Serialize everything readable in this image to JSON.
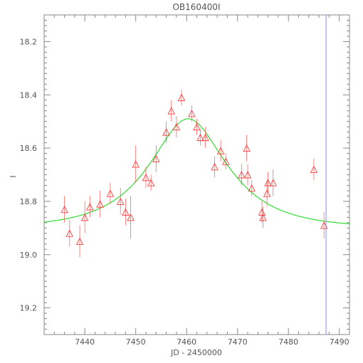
{
  "chart_data": {
    "type": "scatter",
    "title": "OB160400I",
    "xlabel": "JD - 2450000",
    "ylabel": "I",
    "xlim": [
      7432,
      7492
    ],
    "ylim": [
      19.3,
      18.1
    ],
    "y_inverted": true,
    "xticks": [
      7440,
      7450,
      7460,
      7470,
      7480,
      7490
    ],
    "yticks": [
      18.2,
      18.4,
      18.6,
      18.8,
      19.0,
      19.2
    ],
    "yticklabels": [
      "18.2",
      "18.4",
      "18.6",
      "18.8",
      "19.0",
      "19.2"
    ],
    "grid": false,
    "colors": {
      "points": "#ff4040",
      "model": "#33dd33",
      "vline": "#8888ff",
      "axis": "#888888"
    },
    "series": [
      {
        "marker": "open-triangle",
        "points": [
          {
            "x": 7436.0,
            "y": 18.83,
            "err": 0.05
          },
          {
            "x": 7437.0,
            "y": 18.92,
            "err": 0.05
          },
          {
            "x": 7439.0,
            "y": 18.95,
            "err": 0.06
          },
          {
            "x": 7440.0,
            "y": 18.86,
            "err": 0.06
          },
          {
            "x": 7441.0,
            "y": 18.82,
            "err": 0.04
          },
          {
            "x": 7443.0,
            "y": 18.81,
            "err": 0.05
          },
          {
            "x": 7445.0,
            "y": 18.77,
            "err": 0.04
          },
          {
            "x": 7447.0,
            "y": 18.8,
            "err": 0.05
          },
          {
            "x": 7448.0,
            "y": 18.84,
            "err": 0.05
          },
          {
            "x": 7449.0,
            "y": 18.86,
            "err": 0.08
          },
          {
            "x": 7450.0,
            "y": 18.66,
            "err": 0.07
          },
          {
            "x": 7452.0,
            "y": 18.71,
            "err": 0.04
          },
          {
            "x": 7453.0,
            "y": 18.73,
            "err": 0.03
          },
          {
            "x": 7454.0,
            "y": 18.64,
            "err": 0.05
          },
          {
            "x": 7456.0,
            "y": 18.54,
            "err": 0.04
          },
          {
            "x": 7457.0,
            "y": 18.46,
            "err": 0.04
          },
          {
            "x": 7458.0,
            "y": 18.52,
            "err": 0.04
          },
          {
            "x": 7459.0,
            "y": 18.41,
            "err": 0.03
          },
          {
            "x": 7461.0,
            "y": 18.47,
            "err": 0.03
          },
          {
            "x": 7462.0,
            "y": 18.52,
            "err": 0.03
          },
          {
            "x": 7462.7,
            "y": 18.56,
            "err": 0.03
          },
          {
            "x": 7463.7,
            "y": 18.56,
            "err": 0.04
          },
          {
            "x": 7465.5,
            "y": 18.67,
            "err": 0.04
          },
          {
            "x": 7466.7,
            "y": 18.61,
            "err": 0.04
          },
          {
            "x": 7467.7,
            "y": 18.65,
            "err": 0.03
          },
          {
            "x": 7470.8,
            "y": 18.7,
            "err": 0.04
          },
          {
            "x": 7471.8,
            "y": 18.6,
            "err": 0.05
          },
          {
            "x": 7472.0,
            "y": 18.7,
            "err": 0.04
          },
          {
            "x": 7472.8,
            "y": 18.75,
            "err": 0.03
          },
          {
            "x": 7474.8,
            "y": 18.84,
            "err": 0.04
          },
          {
            "x": 7475.0,
            "y": 18.86,
            "err": 0.04
          },
          {
            "x": 7475.8,
            "y": 18.77,
            "err": 0.05
          },
          {
            "x": 7476.0,
            "y": 18.73,
            "err": 0.04
          },
          {
            "x": 7477.0,
            "y": 18.73,
            "err": 0.05
          },
          {
            "x": 7485.0,
            "y": 18.68,
            "err": 0.04
          },
          {
            "x": 7487.0,
            "y": 18.89,
            "err": 0.05
          }
        ]
      }
    ],
    "model_curve": {
      "type": "microlensing",
      "t0": 7460.3,
      "tE": 12.5,
      "u0": 0.55,
      "baseline_mag": 18.9,
      "peak_mag": 18.49
    },
    "vertical_line": {
      "x": 7487.4
    }
  }
}
